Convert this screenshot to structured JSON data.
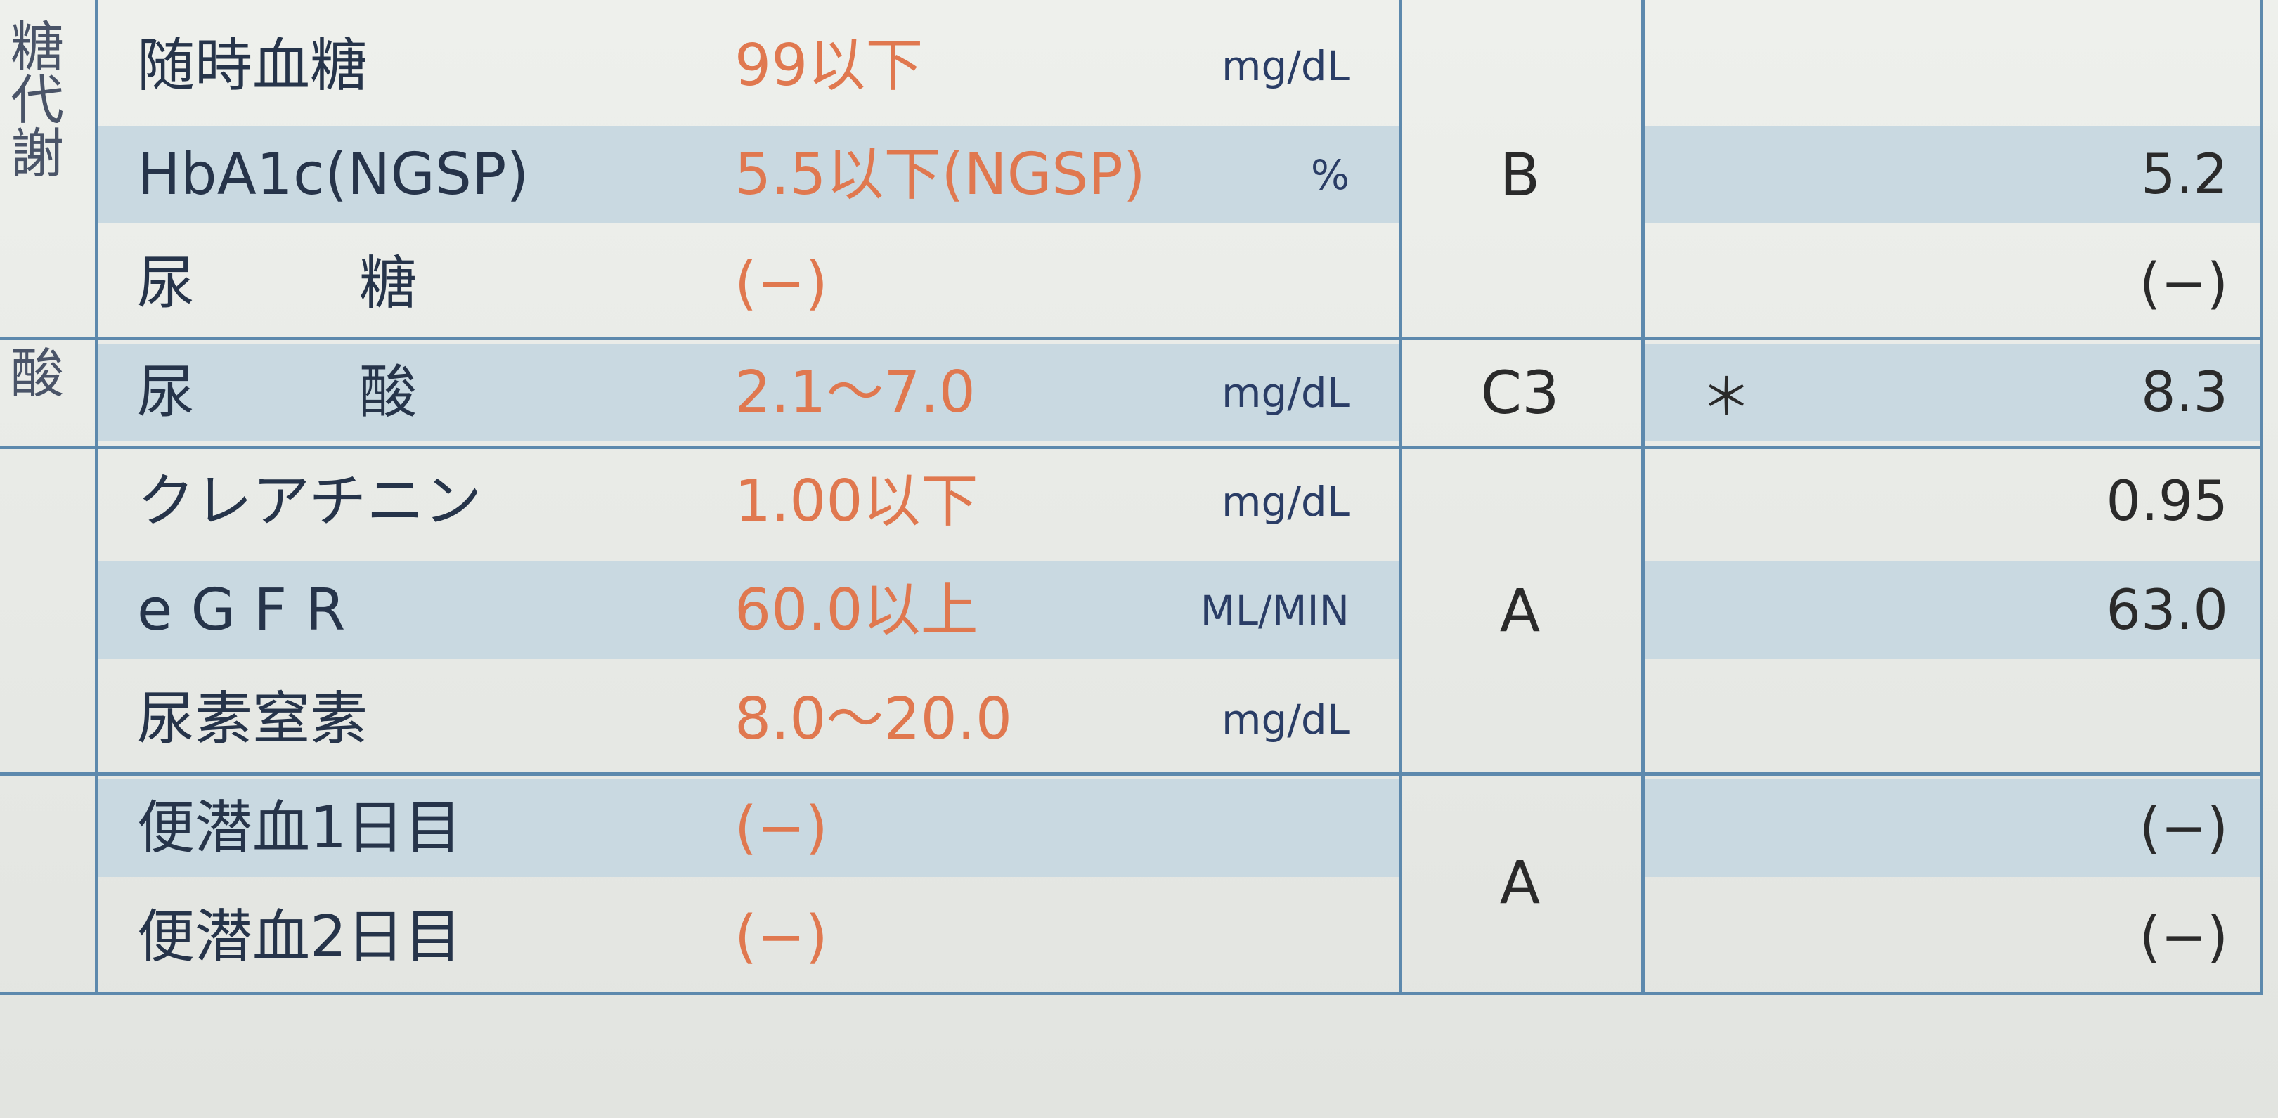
{
  "groups": [
    {
      "side": "糖代謝",
      "grade": "B",
      "rows": [
        {
          "item": "随時血糖",
          "reference": "99以下",
          "unit": "mg/dL"
        },
        {
          "item": "HbA1c(NGSP)",
          "reference": "5.5以下(NGSP)",
          "unit": "%",
          "value": "5.2"
        },
        {
          "item": "尿糖",
          "reference": "(−)",
          "value": "(−)"
        }
      ]
    },
    {
      "side": "酸",
      "grade": "C3",
      "rows": [
        {
          "item": "尿酸",
          "reference": "2.1〜7.0",
          "unit": "mg/dL",
          "flag": "＊",
          "value": "8.3"
        }
      ]
    },
    {
      "grade": "A",
      "rows": [
        {
          "item": "クレアチニン",
          "reference": "1.00以下",
          "unit": "mg/dL",
          "value": "0.95"
        },
        {
          "item": "e G F R",
          "reference": "60.0以上",
          "unit": "ML/MIN",
          "value": "63.0"
        },
        {
          "item": "尿素窒素",
          "reference": "8.0〜20.0",
          "unit": "mg/dL"
        }
      ]
    },
    {
      "grade": "A",
      "rows": [
        {
          "item": "便潜血1日目",
          "reference": "(−)",
          "value": "(−)"
        },
        {
          "item": "便潜血2日目",
          "reference": "(−)",
          "value": "(−)"
        }
      ]
    }
  ]
}
